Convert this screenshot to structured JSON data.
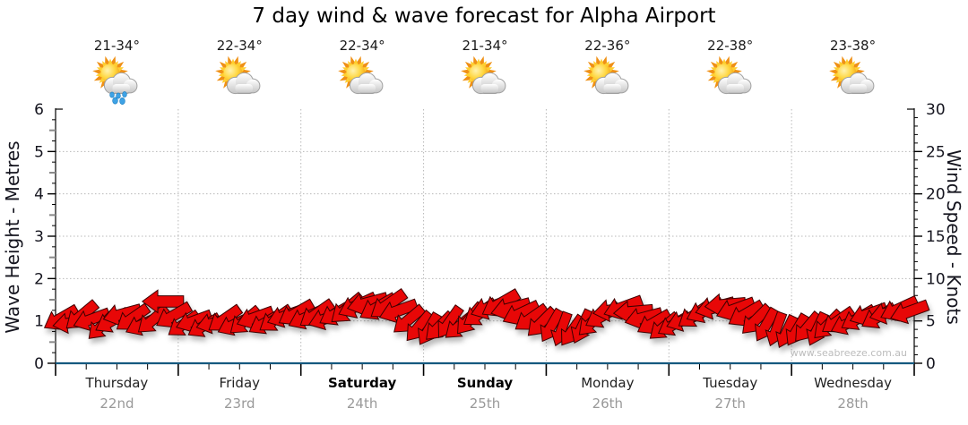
{
  "title": "7 day wind & wave forecast for Alpha Airport",
  "watermark": "www.seabreeze.com.au",
  "axes": {
    "left_label": "Wave Height - Metres",
    "right_label": "Wind Speed - Knots",
    "left_ticks": [
      0,
      1,
      2,
      3,
      4,
      5,
      6
    ],
    "right_ticks": [
      0,
      5,
      10,
      15,
      20,
      25,
      30
    ]
  },
  "days": [
    {
      "name": "Thursday",
      "date": "22nd",
      "temp": "21-34°",
      "icon": "sun-cloud-rain",
      "bold": false
    },
    {
      "name": "Friday",
      "date": "23rd",
      "temp": "22-34°",
      "icon": "sun-cloud",
      "bold": false
    },
    {
      "name": "Saturday",
      "date": "24th",
      "temp": "22-34°",
      "icon": "sun-cloud",
      "bold": true
    },
    {
      "name": "Sunday",
      "date": "25th",
      "temp": "21-34°",
      "icon": "sun-cloud",
      "bold": true
    },
    {
      "name": "Monday",
      "date": "26th",
      "temp": "22-36°",
      "icon": "sun-cloud",
      "bold": false
    },
    {
      "name": "Tuesday",
      "date": "27th",
      "temp": "22-38°",
      "icon": "sun-cloud",
      "bold": false
    },
    {
      "name": "Wednesday",
      "date": "28th",
      "temp": "23-38°",
      "icon": "sun-cloud",
      "bold": false
    }
  ],
  "colors": {
    "arrow_red": "#e80707",
    "arrow_outline": "#3c0000",
    "wave_line_blue": "#15597f",
    "grid_gray": "#b8b8b8",
    "axis_black": "#000000",
    "date_gray": "#999999",
    "watermark_gray": "#bcbcbc"
  },
  "chart_data": {
    "type": "wind-arrows",
    "title": "7 day wind & wave forecast for Alpha Airport",
    "x_categories": [
      "Thursday 22nd",
      "Friday 23rd",
      "Saturday 24th",
      "Sunday 25th",
      "Monday 26th",
      "Tuesday 27th",
      "Wednesday 28th"
    ],
    "left_axis": {
      "label": "Wave Height - Metres",
      "min": 0,
      "max": 6,
      "tick_step": 1,
      "minor_step": 0.25
    },
    "right_axis": {
      "label": "Wind Speed - Knots",
      "min": 0,
      "max": 30,
      "tick_step": 5,
      "minor_step": 1
    },
    "grid": "dotted, horizontal at each metre, vertical at day boundaries",
    "wave_height_metres": [
      0,
      0,
      0,
      0,
      0,
      0,
      0
    ],
    "wind_points_per_day": 12,
    "wind_speed_knots": [
      5.3,
      4.8,
      5.6,
      5.2,
      4.4,
      5.0,
      5.8,
      5.3,
      4.6,
      5.1,
      7.3,
      5.6,
      4.6,
      5.0,
      4.4,
      4.8,
      5.2,
      4.6,
      5.0,
      5.4,
      4.8,
      5.2,
      5.6,
      5.9,
      5.4,
      5.8,
      5.3,
      5.9,
      6.4,
      6.8,
      7.1,
      6.6,
      6.9,
      6.2,
      5.1,
      4.3,
      4.0,
      4.3,
      4.8,
      4.4,
      5.2,
      5.9,
      6.6,
      7.0,
      6.5,
      5.9,
      5.3,
      4.8,
      4.4,
      4.0,
      3.8,
      4.3,
      4.9,
      5.6,
      6.3,
      6.6,
      6.1,
      5.4,
      4.8,
      4.3,
      4.6,
      5.1,
      5.7,
      6.2,
      6.6,
      6.9,
      6.4,
      5.8,
      5.1,
      4.5,
      4.0,
      3.7,
      3.9,
      4.2,
      4.0,
      4.5,
      5.0,
      4.7,
      5.3,
      5.8,
      5.5,
      6.0,
      6.4,
      6.1
    ],
    "wind_dir_deg_cw_from_east": [
      150,
      170,
      140,
      160,
      135,
      150,
      165,
      145,
      155,
      140,
      180,
      150,
      145,
      160,
      150,
      165,
      145,
      155,
      140,
      160,
      150,
      145,
      160,
      150,
      155,
      145,
      160,
      150,
      140,
      155,
      165,
      150,
      145,
      160,
      140,
      130,
      120,
      135,
      125,
      140,
      130,
      145,
      160,
      150,
      165,
      155,
      145,
      135,
      120,
      110,
      125,
      115,
      135,
      150,
      170,
      160,
      175,
      165,
      150,
      140,
      150,
      160,
      145,
      155,
      165,
      175,
      160,
      150,
      135,
      120,
      110,
      115,
      120,
      130,
      115,
      135,
      145,
      155,
      150,
      160,
      150,
      165,
      155,
      160
    ]
  }
}
